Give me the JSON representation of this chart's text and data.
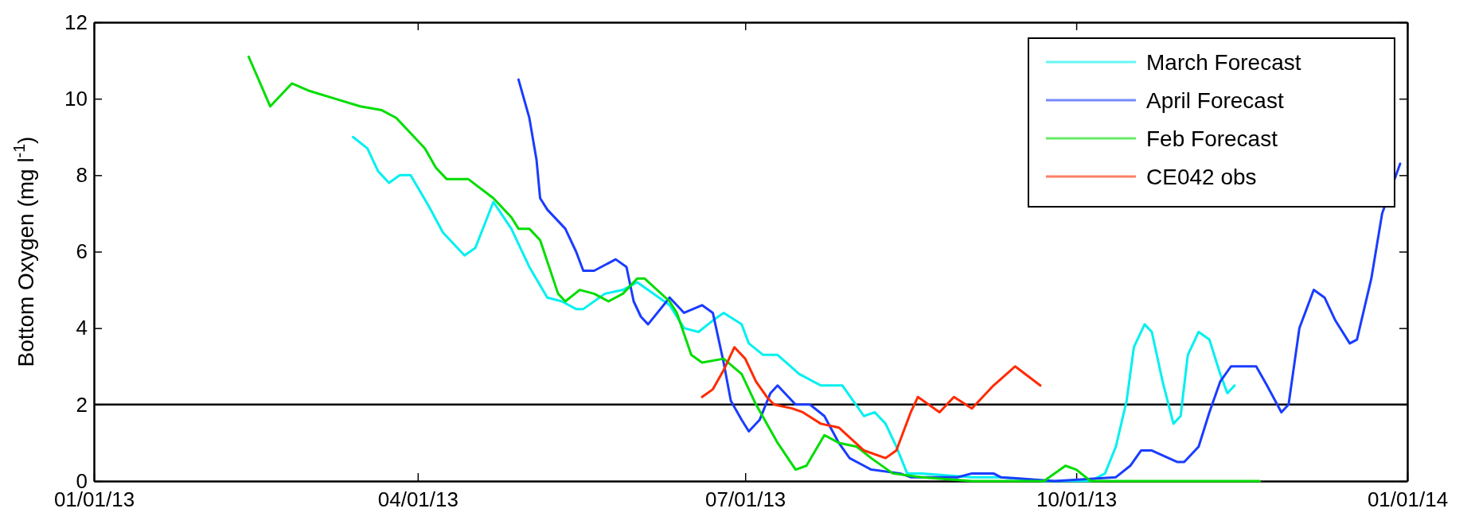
{
  "chart_data": {
    "type": "line",
    "ylabel": "Bottom Oxygen (mg l$^{-1}$)",
    "xlim": [
      "2013-01-01",
      "2014-01-01"
    ],
    "xticks": [
      {
        "value": "2013-01-01",
        "label": "01/01/13"
      },
      {
        "value": "2013-04-01",
        "label": "04/01/13"
      },
      {
        "value": "2013-07-01",
        "label": "07/01/13"
      },
      {
        "value": "2013-10-01",
        "label": "10/01/13"
      },
      {
        "value": "2014-01-01",
        "label": "01/01/14"
      }
    ],
    "ylim": [
      0,
      12
    ],
    "yticks": [
      0,
      2,
      4,
      6,
      8,
      10,
      12
    ],
    "grid": false,
    "legend": "top right",
    "line_style": "solid",
    "ref_lines": [
      {
        "axis": "y",
        "value": 2,
        "color": "#000000"
      }
    ],
    "series": [
      {
        "name": "March Forecast",
        "color": "#00f0f0",
        "x": [
          "2013-03-14",
          "2013-03-18",
          "2013-03-21",
          "2013-03-24",
          "2013-03-27",
          "2013-03-30",
          "2013-04-04",
          "2013-04-08",
          "2013-04-14",
          "2013-04-17",
          "2013-04-22",
          "2013-04-27",
          "2013-05-02",
          "2013-05-07",
          "2013-05-11",
          "2013-05-15",
          "2013-05-17",
          "2013-05-23",
          "2013-05-28",
          "2013-06-01",
          "2013-06-10",
          "2013-06-14",
          "2013-06-18",
          "2013-06-22",
          "2013-06-25",
          "2013-06-30",
          "2013-07-02",
          "2013-07-06",
          "2013-07-10",
          "2013-07-16",
          "2013-07-22",
          "2013-07-28",
          "2013-07-31",
          "2013-08-03",
          "2013-08-06",
          "2013-08-09",
          "2013-08-12",
          "2013-08-15",
          "2013-08-19",
          "2013-09-02",
          "2013-09-10",
          "2013-09-22",
          "2013-10-05",
          "2013-10-09",
          "2013-10-12",
          "2013-10-15",
          "2013-10-17",
          "2013-10-20",
          "2013-10-22",
          "2013-10-25",
          "2013-10-28",
          "2013-10-30",
          "2013-11-01",
          "2013-11-04",
          "2013-11-07",
          "2013-11-10",
          "2013-11-12",
          "2013-11-14"
        ],
        "values": [
          9.0,
          8.7,
          8.1,
          7.8,
          8.0,
          8.0,
          7.2,
          6.5,
          5.9,
          6.1,
          7.3,
          6.6,
          5.6,
          4.8,
          4.7,
          4.5,
          4.5,
          4.9,
          5.0,
          5.2,
          4.6,
          4.0,
          3.9,
          4.2,
          4.4,
          4.1,
          3.6,
          3.3,
          3.3,
          2.8,
          2.5,
          2.5,
          2.1,
          1.7,
          1.8,
          1.5,
          0.9,
          0.2,
          0.2,
          0.1,
          0.1,
          0.0,
          0.0,
          0.2,
          0.9,
          2.1,
          3.5,
          4.1,
          3.9,
          2.6,
          1.5,
          1.7,
          3.3,
          3.9,
          3.7,
          2.8,
          2.3,
          2.5
        ]
      },
      {
        "name": "April Forecast",
        "color": "#1a3cff",
        "x": [
          "2013-04-29",
          "2013-05-02",
          "2013-05-04",
          "2013-05-05",
          "2013-05-07",
          "2013-05-12",
          "2013-05-15",
          "2013-05-17",
          "2013-05-20",
          "2013-05-26",
          "2013-05-29",
          "2013-05-31",
          "2013-06-02",
          "2013-06-04",
          "2013-06-10",
          "2013-06-14",
          "2013-06-19",
          "2013-06-22",
          "2013-06-25",
          "2013-06-27",
          "2013-06-30",
          "2013-07-02",
          "2013-07-05",
          "2013-07-08",
          "2013-07-10",
          "2013-07-13",
          "2013-07-15",
          "2013-07-19",
          "2013-07-23",
          "2013-07-27",
          "2013-07-30",
          "2013-08-03",
          "2013-08-05",
          "2013-08-13",
          "2013-08-16",
          "2013-08-29",
          "2013-09-02",
          "2013-09-08",
          "2013-09-10",
          "2013-09-25",
          "2013-10-12",
          "2013-10-16",
          "2013-10-19",
          "2013-10-22",
          "2013-10-29",
          "2013-10-31",
          "2013-11-04",
          "2013-11-07",
          "2013-11-10",
          "2013-11-13",
          "2013-11-20",
          "2013-11-23",
          "2013-11-27",
          "2013-11-29",
          "2013-12-02",
          "2013-12-06",
          "2013-12-09",
          "2013-12-12",
          "2013-12-16",
          "2013-12-18",
          "2013-12-22",
          "2013-12-25",
          "2013-12-30"
        ],
        "values": [
          10.5,
          9.5,
          8.4,
          7.4,
          7.1,
          6.6,
          6.0,
          5.5,
          5.5,
          5.8,
          5.6,
          4.7,
          4.3,
          4.1,
          4.8,
          4.4,
          4.6,
          4.4,
          3.1,
          2.1,
          1.6,
          1.3,
          1.6,
          2.3,
          2.5,
          2.2,
          2.0,
          2.0,
          1.7,
          1.0,
          0.6,
          0.4,
          0.3,
          0.2,
          0.1,
          0.1,
          0.2,
          0.2,
          0.1,
          0.0,
          0.1,
          0.4,
          0.8,
          0.8,
          0.5,
          0.5,
          0.9,
          1.8,
          2.6,
          3.0,
          3.0,
          2.5,
          1.8,
          2.0,
          4.0,
          5.0,
          4.8,
          4.2,
          3.6,
          3.7,
          5.3,
          7.0,
          8.3
        ]
      },
      {
        "name": "Feb Forecast",
        "color": "#00dd00",
        "x": [
          "2013-02-13",
          "2013-02-19",
          "2013-02-25",
          "2013-03-02",
          "2013-03-09",
          "2013-03-16",
          "2013-03-22",
          "2013-03-26",
          "2013-04-03",
          "2013-04-06",
          "2013-04-09",
          "2013-04-15",
          "2013-04-22",
          "2013-04-23",
          "2013-04-27",
          "2013-04-29",
          "2013-05-02",
          "2013-05-05",
          "2013-05-10",
          "2013-05-12",
          "2013-05-16",
          "2013-05-20",
          "2013-05-24",
          "2013-05-28",
          "2013-06-01",
          "2013-06-03",
          "2013-06-10",
          "2013-06-12",
          "2013-06-16",
          "2013-06-19",
          "2013-06-25",
          "2013-06-30",
          "2013-07-04",
          "2013-07-10",
          "2013-07-15",
          "2013-07-18",
          "2013-07-23",
          "2013-07-27",
          "2013-08-01",
          "2013-08-05",
          "2013-08-11",
          "2013-08-19",
          "2013-09-02",
          "2013-09-22",
          "2013-09-28",
          "2013-10-01",
          "2013-10-05",
          "2013-11-21"
        ],
        "values": [
          11.1,
          9.8,
          10.4,
          10.2,
          10.0,
          9.8,
          9.7,
          9.5,
          8.7,
          8.2,
          7.9,
          7.9,
          7.4,
          7.3,
          6.9,
          6.6,
          6.6,
          6.3,
          4.9,
          4.7,
          5.0,
          4.9,
          4.7,
          4.9,
          5.3,
          5.3,
          4.7,
          4.4,
          3.3,
          3.1,
          3.2,
          2.8,
          2.0,
          1.0,
          0.3,
          0.4,
          1.2,
          1.0,
          0.9,
          0.6,
          0.2,
          0.1,
          0.0,
          0.0,
          0.4,
          0.3,
          0.0,
          0.0
        ]
      },
      {
        "name": "CE042 obs",
        "color": "#ff2a00",
        "x": [
          "2013-06-19",
          "2013-06-22",
          "2013-06-25",
          "2013-06-28",
          "2013-07-01",
          "2013-07-04",
          "2013-07-07",
          "2013-07-09",
          "2013-07-14",
          "2013-07-17",
          "2013-07-22",
          "2013-07-27",
          "2013-08-03",
          "2013-08-09",
          "2013-08-12",
          "2013-08-16",
          "2013-08-18",
          "2013-08-24",
          "2013-08-28",
          "2013-09-02",
          "2013-09-08",
          "2013-09-14",
          "2013-09-21"
        ],
        "values": [
          2.2,
          2.4,
          2.9,
          3.5,
          3.2,
          2.6,
          2.2,
          2.0,
          1.9,
          1.8,
          1.5,
          1.4,
          0.8,
          0.6,
          0.8,
          1.8,
          2.2,
          1.8,
          2.2,
          1.9,
          2.5,
          3.0,
          2.5
        ]
      }
    ]
  }
}
